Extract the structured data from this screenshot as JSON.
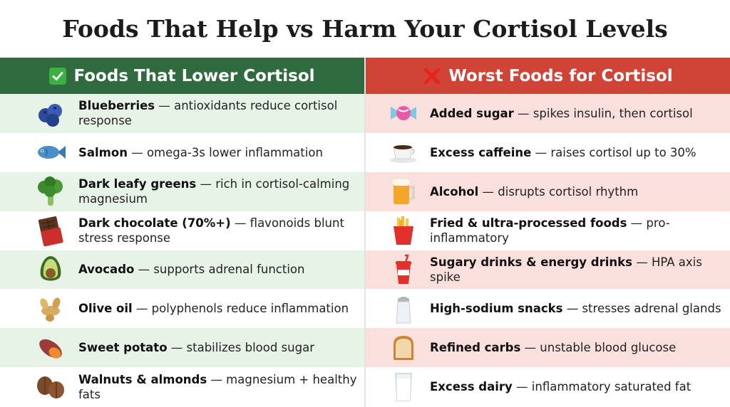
{
  "title": "Foods That Help vs Harm Your Cortisol Levels",
  "left": {
    "header": "Foods That Lower Cortisol",
    "header_icon": "check-mark-icon",
    "items": [
      {
        "icon": "blueberries-icon",
        "name": "Blueberries",
        "desc": " — antioxidants reduce cortisol response"
      },
      {
        "icon": "fish-icon",
        "name": "Salmon",
        "desc": " — omega-3s lower inflammation"
      },
      {
        "icon": "broccoli-icon",
        "name": "Dark leafy greens",
        "desc": " — rich in cortisol-calming magnesium"
      },
      {
        "icon": "chocolate-bar-icon",
        "name": "Dark chocolate (70%+)",
        "desc": " — flavonoids blunt stress response"
      },
      {
        "icon": "avocado-icon",
        "name": "Avocado",
        "desc": " — supports adrenal function"
      },
      {
        "icon": "ginger-root-icon",
        "name": "Olive oil",
        "desc": " — polyphenols reduce inflammation"
      },
      {
        "icon": "sweet-potato-icon",
        "name": "Sweet potato",
        "desc": " — stabilizes blood sugar"
      },
      {
        "icon": "nuts-icon",
        "name": "Walnuts & almonds",
        "desc": " — magnesium + healthy fats"
      }
    ]
  },
  "right": {
    "header": "Worst Foods for Cortisol",
    "header_icon": "cross-mark-icon",
    "items": [
      {
        "icon": "candy-icon",
        "name": "Added sugar",
        "desc": " — spikes insulin, then cortisol"
      },
      {
        "icon": "coffee-cup-icon",
        "name": "Excess caffeine",
        "desc": " — raises cortisol up to 30%"
      },
      {
        "icon": "beer-mug-icon",
        "name": "Alcohol",
        "desc": " — disrupts cortisol rhythm"
      },
      {
        "icon": "french-fries-icon",
        "name": "Fried & ultra-processed foods",
        "desc": " — pro-inflammatory"
      },
      {
        "icon": "soda-cup-icon",
        "name": "Sugary drinks & energy drinks",
        "desc": " — HPA axis spike"
      },
      {
        "icon": "salt-shaker-icon",
        "name": "High-sodium snacks",
        "desc": " — stresses adrenal glands"
      },
      {
        "icon": "bread-icon",
        "name": "Refined carbs",
        "desc": " — unstable blood glucose"
      },
      {
        "icon": "milk-glass-icon",
        "name": "Excess dairy",
        "desc": " — inflammatory saturated fat"
      }
    ]
  },
  "colors": {
    "good_header": "#2f6b3f",
    "bad_header": "#d04437",
    "good_row_alt": "#e8f3e8",
    "bad_row_alt": "#f9e0dc"
  }
}
